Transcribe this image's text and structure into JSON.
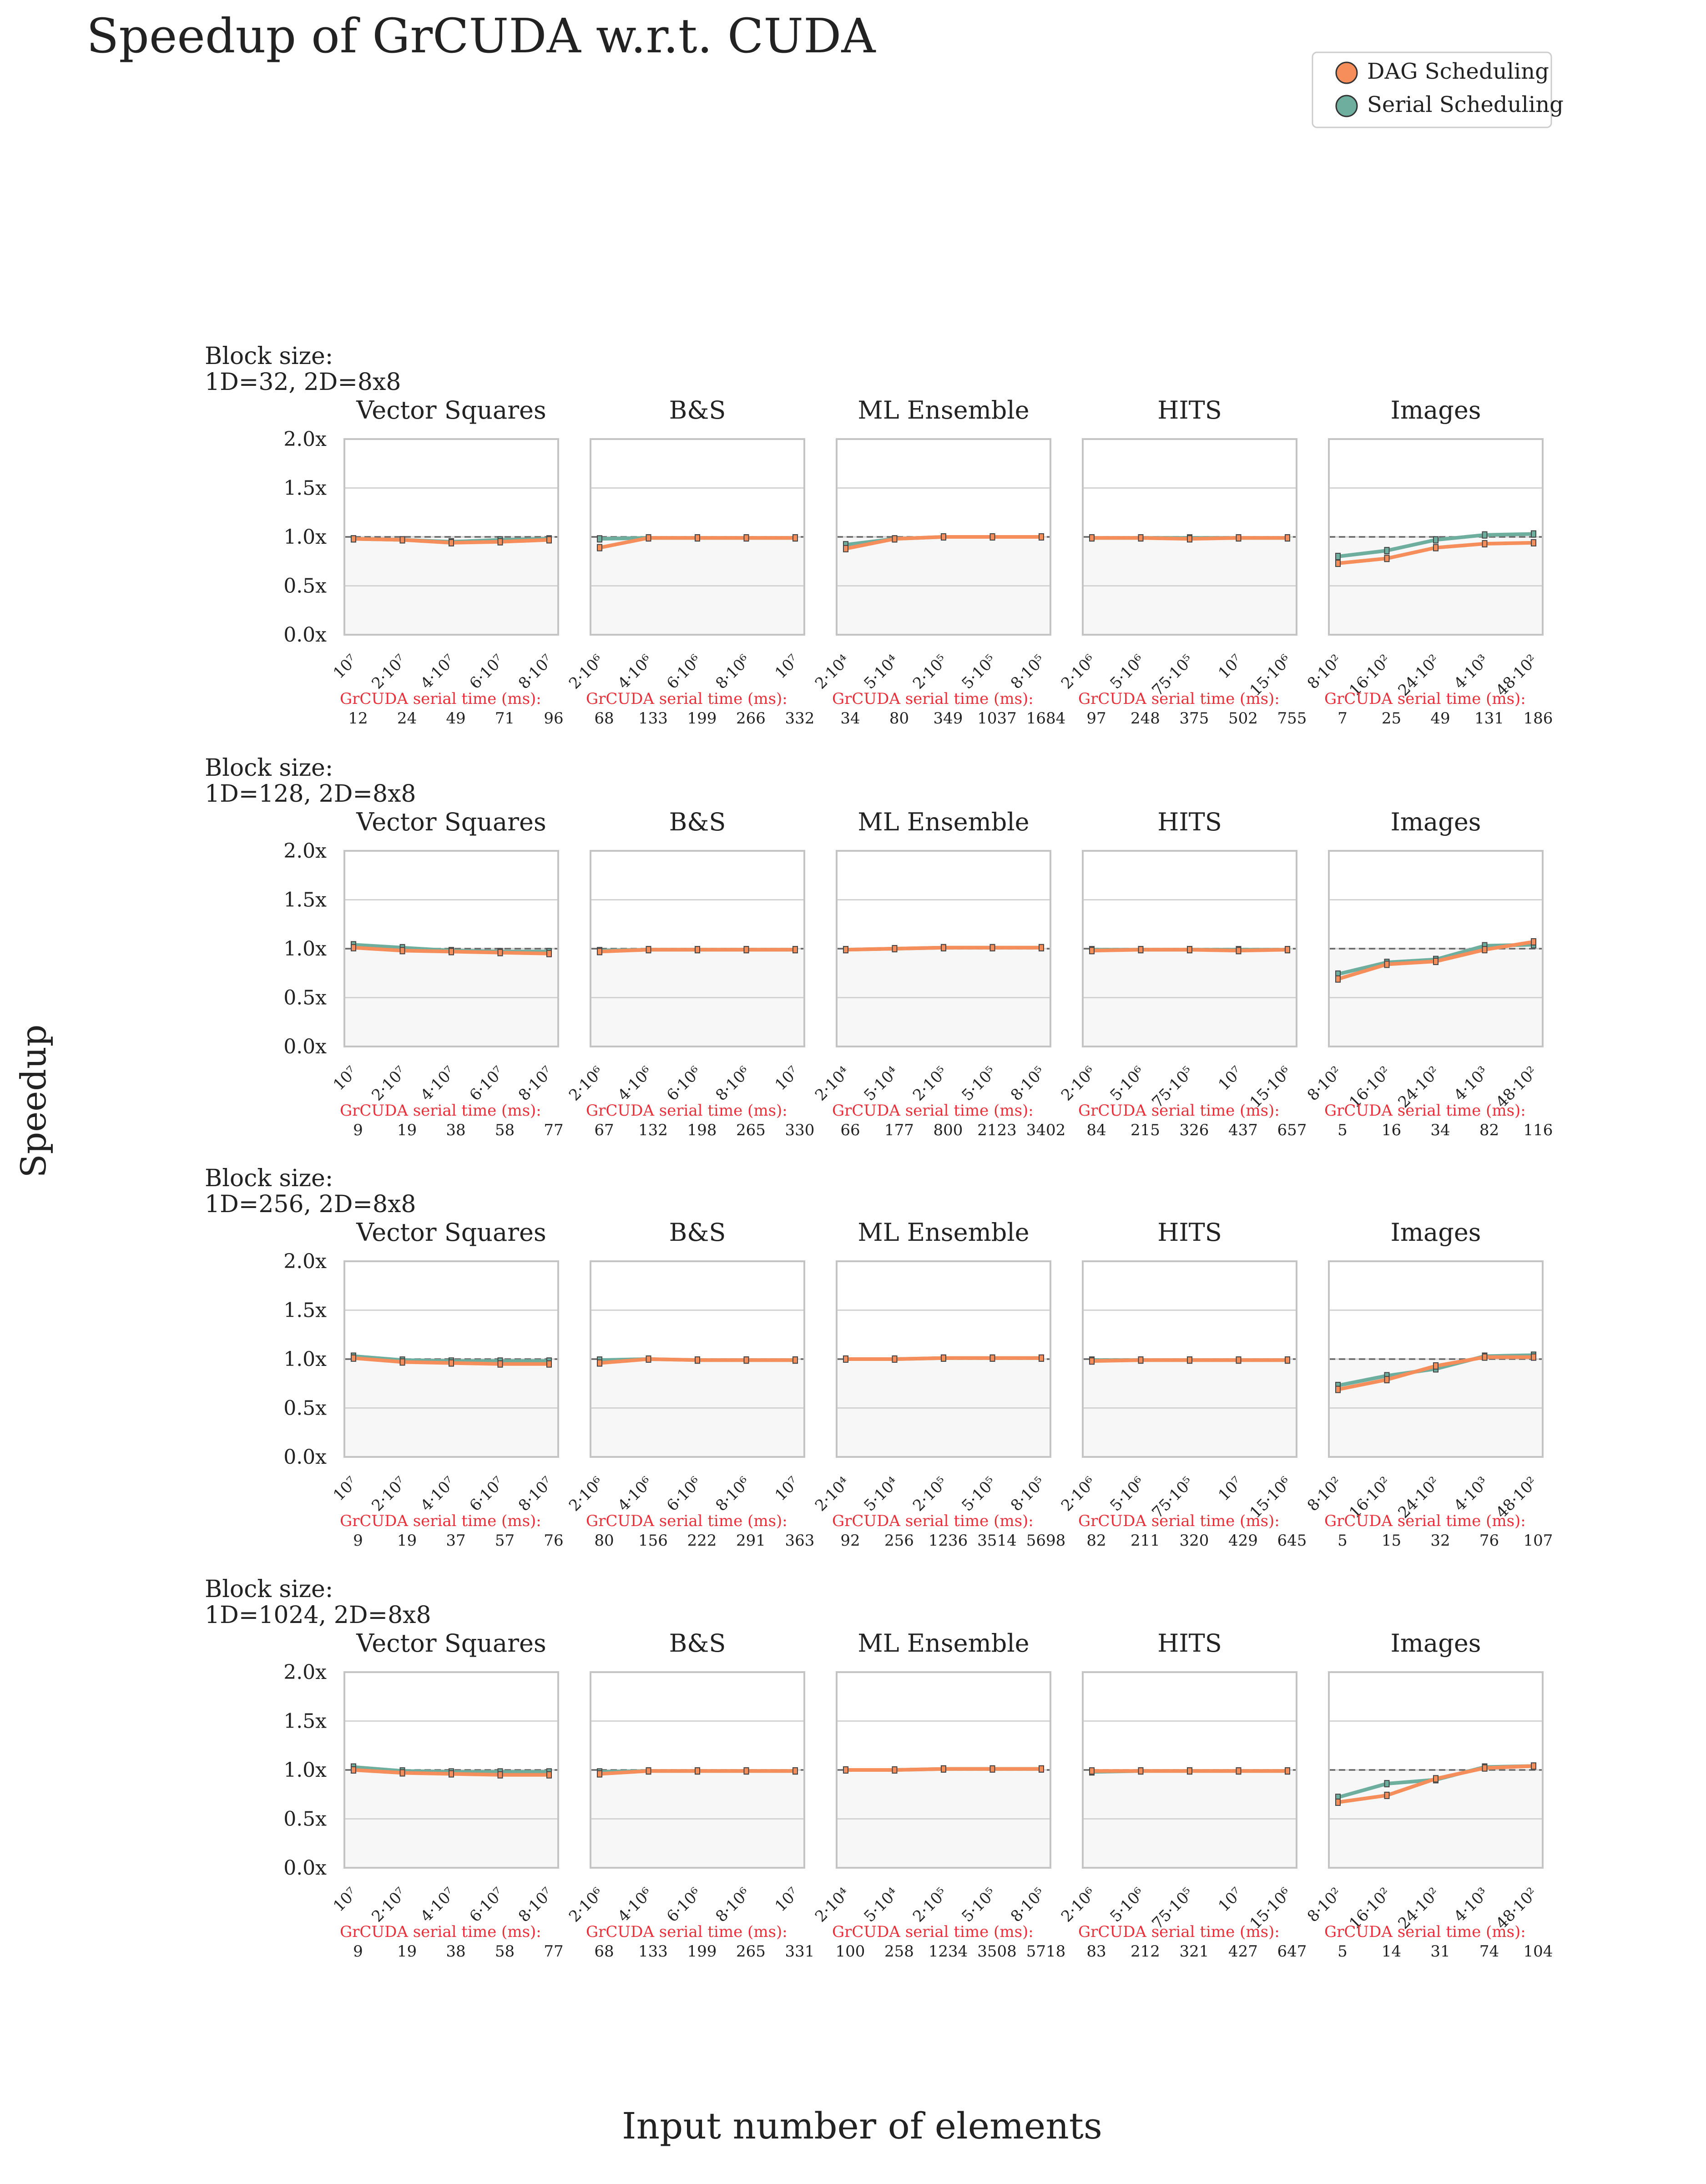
{
  "title": "Speedup of GrCUDA w.r.t. CUDA",
  "ylabel": "Speedup",
  "xlabel": "Input number of elements",
  "legend": [
    {
      "label": "DAG Scheduling",
      "color": "#F58E5B"
    },
    {
      "label": "Serial Scheduling",
      "color": "#6EAE9E"
    }
  ],
  "colors": {
    "dag": "#F58E5B",
    "serial": "#6EAE9E",
    "serial_time": "#E8303A",
    "reference": "#666666",
    "below_fill": "#F7F7F7"
  },
  "serial_time_label": "GrCUDA serial time (ms):",
  "y_ticks": [
    "0.0x",
    "0.5x",
    "1.0x",
    "1.5x",
    "2.0x"
  ],
  "chart_data": {
    "type": "line",
    "ylim": [
      0,
      2
    ],
    "reference_line": 1.0,
    "legend_position": "top-right",
    "grid": true,
    "benchmarks": [
      {
        "name": "Vector Squares",
        "x_ticks": [
          "10⁷",
          "2·10⁷",
          "4·10⁷",
          "6·10⁷",
          "8·10⁷"
        ]
      },
      {
        "name": "B&S",
        "x_ticks": [
          "2·10⁶",
          "4·10⁶",
          "6·10⁶",
          "8·10⁶",
          "10⁷"
        ]
      },
      {
        "name": "ML Ensemble",
        "x_ticks": [
          "2·10⁴",
          "5·10⁴",
          "2·10⁵",
          "5·10⁵",
          "8·10⁵"
        ]
      },
      {
        "name": "HITS",
        "x_ticks": [
          "2·10⁶",
          "5·10⁶",
          "75·10⁵",
          "10⁷",
          "15·10⁶"
        ]
      },
      {
        "name": "Images",
        "x_ticks": [
          "8·10²",
          "16·10²",
          "24·10²",
          "4·10³",
          "48·10²"
        ]
      }
    ],
    "rows": [
      {
        "block_size": "Block size:\n1D=32, 2D=8x8",
        "panels": [
          {
            "dag": [
              0.98,
              0.97,
              0.94,
              0.95,
              0.97
            ],
            "serial": [
              0.98,
              0.97,
              0.95,
              0.97,
              0.98
            ],
            "serial_times": [
              "12",
              "24",
              "49",
              "71",
              "96"
            ]
          },
          {
            "dag": [
              0.89,
              0.99,
              0.99,
              0.99,
              0.99
            ],
            "serial": [
              0.98,
              0.99,
              0.99,
              0.99,
              0.99
            ],
            "serial_times": [
              "68",
              "133",
              "199",
              "266",
              "332"
            ]
          },
          {
            "dag": [
              0.88,
              0.98,
              1.0,
              1.0,
              1.0
            ],
            "serial": [
              0.92,
              0.98,
              1.0,
              1.0,
              1.0
            ],
            "serial_times": [
              "34",
              "80",
              "349",
              "1037",
              "1684"
            ]
          },
          {
            "dag": [
              0.99,
              0.99,
              0.98,
              0.99,
              0.99
            ],
            "serial": [
              0.99,
              0.99,
              0.99,
              0.99,
              0.99
            ],
            "serial_times": [
              "97",
              "248",
              "375",
              "502",
              "755"
            ]
          },
          {
            "dag": [
              0.73,
              0.78,
              0.89,
              0.93,
              0.94
            ],
            "serial": [
              0.8,
              0.86,
              0.97,
              1.02,
              1.03
            ],
            "serial_times": [
              "7",
              "25",
              "49",
              "131",
              "186"
            ]
          }
        ]
      },
      {
        "block_size": "Block size:\n1D=128, 2D=8x8",
        "panels": [
          {
            "dag": [
              1.01,
              0.98,
              0.97,
              0.96,
              0.95
            ],
            "serial": [
              1.04,
              1.01,
              0.98,
              0.97,
              0.97
            ],
            "serial_times": [
              "9",
              "19",
              "38",
              "58",
              "77"
            ]
          },
          {
            "dag": [
              0.97,
              0.99,
              0.99,
              0.99,
              0.99
            ],
            "serial": [
              0.98,
              0.99,
              0.99,
              0.99,
              0.99
            ],
            "serial_times": [
              "67",
              "132",
              "198",
              "265",
              "330"
            ]
          },
          {
            "dag": [
              0.99,
              1.0,
              1.01,
              1.01,
              1.01
            ],
            "serial": [
              0.99,
              1.0,
              1.01,
              1.01,
              1.01
            ],
            "serial_times": [
              "66",
              "177",
              "800",
              "2123",
              "3402"
            ]
          },
          {
            "dag": [
              0.98,
              0.99,
              0.99,
              0.98,
              0.99
            ],
            "serial": [
              0.99,
              0.99,
              0.99,
              0.99,
              0.99
            ],
            "serial_times": [
              "84",
              "215",
              "326",
              "437",
              "657"
            ]
          },
          {
            "dag": [
              0.69,
              0.84,
              0.87,
              0.99,
              1.07
            ],
            "serial": [
              0.74,
              0.86,
              0.89,
              1.03,
              1.04
            ],
            "serial_times": [
              "5",
              "16",
              "34",
              "82",
              "116"
            ]
          }
        ]
      },
      {
        "block_size": "Block size:\n1D=256, 2D=8x8",
        "panels": [
          {
            "dag": [
              1.01,
              0.97,
              0.96,
              0.95,
              0.95
            ],
            "serial": [
              1.03,
              0.99,
              0.98,
              0.98,
              0.98
            ],
            "serial_times": [
              "9",
              "19",
              "37",
              "57",
              "76"
            ]
          },
          {
            "dag": [
              0.96,
              1.0,
              0.99,
              0.99,
              0.99
            ],
            "serial": [
              0.99,
              1.0,
              0.99,
              0.99,
              0.99
            ],
            "serial_times": [
              "80",
              "156",
              "222",
              "291",
              "363"
            ]
          },
          {
            "dag": [
              1.0,
              1.0,
              1.01,
              1.01,
              1.01
            ],
            "serial": [
              1.0,
              1.0,
              1.01,
              1.01,
              1.01
            ],
            "serial_times": [
              "92",
              "256",
              "1236",
              "3514",
              "5698"
            ]
          },
          {
            "dag": [
              0.98,
              0.99,
              0.99,
              0.99,
              0.99
            ],
            "serial": [
              0.99,
              0.99,
              0.99,
              0.99,
              0.99
            ],
            "serial_times": [
              "82",
              "211",
              "320",
              "429",
              "645"
            ]
          },
          {
            "dag": [
              0.69,
              0.79,
              0.93,
              1.02,
              1.02
            ],
            "serial": [
              0.73,
              0.83,
              0.9,
              1.03,
              1.04
            ],
            "serial_times": [
              "5",
              "15",
              "32",
              "76",
              "107"
            ]
          }
        ]
      },
      {
        "block_size": "Block size:\n1D=1024, 2D=8x8",
        "panels": [
          {
            "dag": [
              1.0,
              0.97,
              0.96,
              0.95,
              0.95
            ],
            "serial": [
              1.03,
              0.99,
              0.98,
              0.98,
              0.98
            ],
            "serial_times": [
              "9",
              "19",
              "38",
              "58",
              "77"
            ]
          },
          {
            "dag": [
              0.96,
              0.99,
              0.99,
              0.99,
              0.99
            ],
            "serial": [
              0.98,
              0.99,
              0.99,
              0.99,
              0.99
            ],
            "serial_times": [
              "68",
              "133",
              "199",
              "265",
              "331"
            ]
          },
          {
            "dag": [
              1.0,
              1.0,
              1.01,
              1.01,
              1.01
            ],
            "serial": [
              1.0,
              1.0,
              1.01,
              1.01,
              1.01
            ],
            "serial_times": [
              "100",
              "258",
              "1234",
              "3508",
              "5718"
            ]
          },
          {
            "dag": [
              0.99,
              0.99,
              0.99,
              0.99,
              0.99
            ],
            "serial": [
              0.98,
              0.99,
              0.99,
              0.99,
              0.99
            ],
            "serial_times": [
              "83",
              "212",
              "321",
              "427",
              "647"
            ]
          },
          {
            "dag": [
              0.67,
              0.74,
              0.91,
              1.02,
              1.04
            ],
            "serial": [
              0.72,
              0.86,
              0.9,
              1.03,
              1.04
            ],
            "serial_times": [
              "5",
              "14",
              "31",
              "74",
              "104"
            ]
          }
        ]
      }
    ]
  }
}
